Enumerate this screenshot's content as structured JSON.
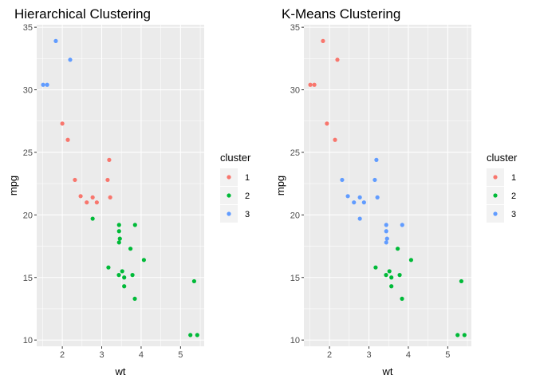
{
  "chart_data": [
    {
      "type": "scatter",
      "title": "Hierarchical Clustering",
      "xlabel": "wt",
      "ylabel": "mpg",
      "xlim": [
        1.35,
        5.6
      ],
      "ylim": [
        9.5,
        35.2
      ],
      "x_ticks": [
        2,
        3,
        4,
        5
      ],
      "y_ticks": [
        10,
        15,
        20,
        25,
        30,
        35
      ],
      "grid": true,
      "legend_title": "cluster",
      "legend_position": "right",
      "series": [
        {
          "name": "1",
          "color": "#F8766D",
          "points": [
            {
              "x": 2.0,
              "y": 27.3
            },
            {
              "x": 2.14,
              "y": 26.0
            },
            {
              "x": 2.32,
              "y": 22.8
            },
            {
              "x": 2.465,
              "y": 21.5
            },
            {
              "x": 2.62,
              "y": 21.0
            },
            {
              "x": 2.77,
              "y": 21.4
            },
            {
              "x": 2.875,
              "y": 21.0
            },
            {
              "x": 3.15,
              "y": 22.8
            },
            {
              "x": 3.19,
              "y": 24.4
            },
            {
              "x": 3.215,
              "y": 21.4
            }
          ]
        },
        {
          "name": "2",
          "color": "#00BA38",
          "points": [
            {
              "x": 2.77,
              "y": 19.7
            },
            {
              "x": 3.17,
              "y": 15.8
            },
            {
              "x": 3.435,
              "y": 15.2
            },
            {
              "x": 3.44,
              "y": 18.7
            },
            {
              "x": 3.44,
              "y": 19.2
            },
            {
              "x": 3.44,
              "y": 17.8
            },
            {
              "x": 3.46,
              "y": 18.1
            },
            {
              "x": 3.52,
              "y": 15.5
            },
            {
              "x": 3.57,
              "y": 14.3
            },
            {
              "x": 3.57,
              "y": 15.0
            },
            {
              "x": 3.73,
              "y": 17.3
            },
            {
              "x": 3.78,
              "y": 15.2
            },
            {
              "x": 3.84,
              "y": 13.3
            },
            {
              "x": 3.845,
              "y": 19.2
            },
            {
              "x": 4.07,
              "y": 16.4
            },
            {
              "x": 5.25,
              "y": 10.4
            },
            {
              "x": 5.345,
              "y": 14.7
            },
            {
              "x": 5.424,
              "y": 10.4
            }
          ]
        },
        {
          "name": "3",
          "color": "#619CFF",
          "points": [
            {
              "x": 1.513,
              "y": 30.4
            },
            {
              "x": 1.615,
              "y": 30.4
            },
            {
              "x": 1.835,
              "y": 33.9
            },
            {
              "x": 2.2,
              "y": 32.4
            }
          ]
        }
      ]
    },
    {
      "type": "scatter",
      "title": "K-Means Clustering",
      "xlabel": "wt",
      "ylabel": "mpg",
      "xlim": [
        1.35,
        5.6
      ],
      "ylim": [
        9.5,
        35.2
      ],
      "x_ticks": [
        2,
        3,
        4,
        5
      ],
      "y_ticks": [
        10,
        15,
        20,
        25,
        30,
        35
      ],
      "grid": true,
      "legend_title": "cluster",
      "legend_position": "right",
      "series": [
        {
          "name": "1",
          "color": "#F8766D",
          "points": [
            {
              "x": 1.513,
              "y": 30.4
            },
            {
              "x": 1.615,
              "y": 30.4
            },
            {
              "x": 1.835,
              "y": 33.9
            },
            {
              "x": 1.935,
              "y": 27.3
            },
            {
              "x": 2.14,
              "y": 26.0
            },
            {
              "x": 2.2,
              "y": 32.4
            }
          ]
        },
        {
          "name": "2",
          "color": "#00BA38",
          "points": [
            {
              "x": 3.17,
              "y": 15.8
            },
            {
              "x": 3.435,
              "y": 15.2
            },
            {
              "x": 3.52,
              "y": 15.5
            },
            {
              "x": 3.57,
              "y": 14.3
            },
            {
              "x": 3.57,
              "y": 15.0
            },
            {
              "x": 3.73,
              "y": 17.3
            },
            {
              "x": 3.78,
              "y": 15.2
            },
            {
              "x": 3.84,
              "y": 13.3
            },
            {
              "x": 4.07,
              "y": 16.4
            },
            {
              "x": 5.25,
              "y": 10.4
            },
            {
              "x": 5.345,
              "y": 14.7
            },
            {
              "x": 5.424,
              "y": 10.4
            }
          ]
        },
        {
          "name": "3",
          "color": "#619CFF",
          "points": [
            {
              "x": 2.32,
              "y": 22.8
            },
            {
              "x": 2.465,
              "y": 21.5
            },
            {
              "x": 2.62,
              "y": 21.0
            },
            {
              "x": 2.77,
              "y": 21.4
            },
            {
              "x": 2.77,
              "y": 19.7
            },
            {
              "x": 2.875,
              "y": 21.0
            },
            {
              "x": 3.15,
              "y": 22.8
            },
            {
              "x": 3.19,
              "y": 24.4
            },
            {
              "x": 3.215,
              "y": 21.4
            },
            {
              "x": 3.44,
              "y": 18.7
            },
            {
              "x": 3.44,
              "y": 19.2
            },
            {
              "x": 3.44,
              "y": 17.8
            },
            {
              "x": 3.46,
              "y": 18.1
            },
            {
              "x": 3.845,
              "y": 19.2
            }
          ]
        }
      ]
    }
  ]
}
